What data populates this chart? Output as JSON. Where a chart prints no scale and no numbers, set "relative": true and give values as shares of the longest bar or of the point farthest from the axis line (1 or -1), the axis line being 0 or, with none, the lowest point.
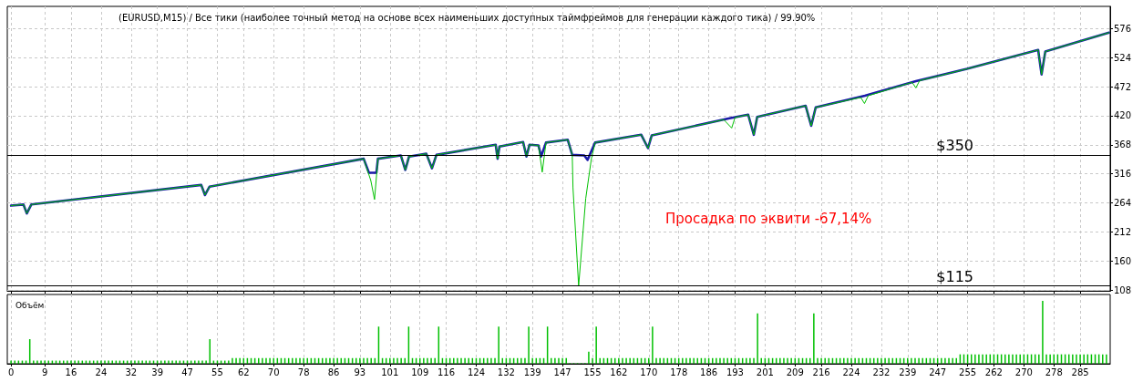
{
  "chart_data": [
    {
      "type": "line",
      "title": "(EURUSD,M15) / Все тики (наиболее точный метод на основе всех наименьших доступных таймфреймов для генерации каждого тика) / 99.90%",
      "annotations": [
        "Просадка по эквити -67,14%"
      ],
      "series": [
        {
          "color": "#00c000",
          "x": [
            0,
            3.3,
            4.2,
            5.4,
            50.7,
            51.7,
            52.9,
            94,
            95.9,
            96.9,
            97.8,
            103.9,
            105.1,
            106.1,
            110.7,
            112.2,
            113.4,
            129.2,
            129.7,
            130.2,
            136.5,
            137.4,
            138.2,
            140.6,
            141.6,
            142.6,
            148.4,
            149.6,
            149.8,
            151.3,
            153.2,
            154.7,
            155.7,
            168,
            169.8,
            170.8,
            190,
            192.1,
            193,
            196.5,
            198,
            198.9,
            211.8,
            213.3,
            214.5,
            226.5,
            227.5,
            228.5,
            240.2,
            241.2,
            242.2,
            254.8,
            273.8,
            274.7,
            275.7,
            292.7
          ],
          "values": [
            259,
            261,
            245,
            261,
            296,
            278,
            293,
            343,
            304,
            270,
            343,
            349,
            323,
            347,
            352,
            326,
            350,
            368,
            343,
            365,
            373,
            347,
            368,
            367,
            319,
            372,
            377,
            350,
            291,
            115,
            272,
            343,
            372,
            386,
            362,
            385,
            413,
            398,
            417,
            422,
            386,
            418,
            438,
            402,
            435,
            453,
            442,
            456,
            480,
            470,
            483,
            504,
            538,
            494,
            535,
            569
          ]
        },
        {
          "color": "#1a1aa8",
          "x": [
            0,
            3.3,
            4.2,
            5.4,
            50.7,
            51.7,
            52.9,
            94,
            95.4,
            97.4,
            97.8,
            103.9,
            105.1,
            106.1,
            110.7,
            112.2,
            113.4,
            129.2,
            129.7,
            130.2,
            136.5,
            137.4,
            138.2,
            140.6,
            141.3,
            142.6,
            148.4,
            149.6,
            152.8,
            153.7,
            155.7,
            168,
            169.8,
            170.8,
            191.2,
            196.5,
            198,
            198.9,
            211.8,
            213.3,
            214.5,
            227.6,
            241.2,
            254.8,
            273.8,
            274.7,
            275.7,
            292.7
          ],
          "values": [
            259,
            261,
            245,
            261,
            296,
            278,
            293,
            343,
            318,
            318,
            343,
            349,
            323,
            347,
            352,
            326,
            350,
            368,
            343,
            365,
            373,
            347,
            368,
            367,
            347,
            372,
            377,
            350,
            349,
            341,
            372,
            386,
            362,
            385,
            415,
            422,
            386,
            418,
            438,
            402,
            435,
            456,
            482,
            504,
            538,
            494,
            535,
            569
          ]
        }
      ],
      "xlim": [
        -1,
        293
      ],
      "xticks": [
        0,
        9,
        16,
        24,
        32,
        39,
        47,
        55,
        62,
        70,
        78,
        86,
        93,
        101,
        109,
        116,
        124,
        132,
        139,
        147,
        155,
        162,
        170,
        178,
        186,
        193,
        201,
        209,
        216,
        224,
        232,
        239,
        247,
        255,
        262,
        270,
        278,
        285
      ],
      "ylim": [
        106,
        616
      ],
      "yticks": [
        108,
        160,
        212,
        264,
        316,
        368,
        420,
        472,
        524,
        576
      ],
      "ref_lines": [
        {
          "axis": "y",
          "value": 350,
          "label": "$350",
          "color": "#000000"
        },
        {
          "axis": "y",
          "value": 115,
          "label": "$115",
          "color": "#000000"
        }
      ],
      "grid": true,
      "marker": "none",
      "line_style": "solid",
      "tick_labels": "y"
    },
    {
      "type": "bar",
      "title": "Объём",
      "relative": true,
      "color": "#00c000",
      "grid": "x",
      "tick_labels": "x",
      "xlim": [
        -1,
        293
      ],
      "xticks": [
        0,
        9,
        16,
        24,
        32,
        39,
        47,
        55,
        62,
        70,
        78,
        86,
        93,
        101,
        109,
        116,
        124,
        132,
        139,
        147,
        155,
        162,
        170,
        178,
        186,
        193,
        201,
        209,
        216,
        224,
        232,
        239,
        247,
        255,
        262,
        270,
        278,
        285
      ],
      "x": [
        0,
        1,
        2,
        3,
        4,
        5,
        6,
        7,
        8,
        9,
        10,
        11,
        12,
        13,
        14,
        15,
        16,
        17,
        18,
        19,
        20,
        21,
        22,
        23,
        24,
        25,
        26,
        27,
        28,
        29,
        30,
        31,
        32,
        33,
        34,
        35,
        36,
        37,
        38,
        39,
        40,
        41,
        42,
        43,
        44,
        45,
        46,
        47,
        48,
        49,
        50,
        51,
        52,
        53,
        54,
        55,
        56,
        57,
        58,
        59,
        60,
        61,
        62,
        63,
        64,
        65,
        66,
        67,
        68,
        69,
        70,
        71,
        72,
        73,
        74,
        75,
        76,
        77,
        78,
        79,
        80,
        81,
        82,
        83,
        84,
        85,
        86,
        87,
        88,
        89,
        90,
        91,
        92,
        93,
        94,
        95,
        96,
        97,
        98,
        99,
        100,
        101,
        102,
        103,
        104,
        105,
        106,
        107,
        108,
        109,
        110,
        111,
        112,
        113,
        114,
        115,
        116,
        117,
        118,
        119,
        120,
        121,
        122,
        123,
        124,
        125,
        126,
        127,
        128,
        129,
        130,
        131,
        132,
        133,
        134,
        135,
        136,
        137,
        138,
        139,
        140,
        141,
        142,
        143,
        144,
        145,
        146,
        147,
        148,
        149,
        150,
        151,
        152,
        153,
        154,
        155,
        156,
        157,
        158,
        159,
        160,
        161,
        162,
        163,
        164,
        165,
        166,
        167,
        168,
        169,
        170,
        171,
        172,
        173,
        174,
        175,
        176,
        177,
        178,
        179,
        180,
        181,
        182,
        183,
        184,
        185,
        186,
        187,
        188,
        189,
        190,
        191,
        192,
        193,
        194,
        195,
        196,
        197,
        198,
        199,
        200,
        201,
        202,
        203,
        204,
        205,
        206,
        207,
        208,
        209,
        210,
        211,
        212,
        213,
        214,
        215,
        216,
        217,
        218,
        219,
        220,
        221,
        222,
        223,
        224,
        225,
        226,
        227,
        228,
        229,
        230,
        231,
        232,
        233,
        234,
        235,
        236,
        237,
        238,
        239,
        240,
        241,
        242,
        243,
        244,
        245,
        246,
        247,
        248,
        249,
        250,
        251,
        252,
        253,
        254,
        255,
        256,
        257,
        258,
        259,
        260,
        261,
        262,
        263,
        264,
        265,
        266,
        267,
        268,
        269,
        270,
        271,
        272,
        273,
        274,
        275,
        276,
        277,
        278,
        279,
        280,
        281,
        282,
        283,
        284,
        285,
        286,
        287,
        288,
        289,
        290,
        291,
        292
      ],
      "values": [
        0.05,
        0.05,
        0.05,
        0.05,
        0.05,
        0.39,
        0.05,
        0.05,
        0.05,
        0.05,
        0.05,
        0.05,
        0.05,
        0.05,
        0.05,
        0.05,
        0.05,
        0.05,
        0.05,
        0.05,
        0.05,
        0.05,
        0.05,
        0.05,
        0.05,
        0.05,
        0.05,
        0.05,
        0.05,
        0.05,
        0.05,
        0.05,
        0.05,
        0.05,
        0.05,
        0.05,
        0.05,
        0.05,
        0.05,
        0.05,
        0.05,
        0.05,
        0.05,
        0.05,
        0.05,
        0.05,
        0.05,
        0.05,
        0.05,
        0.05,
        0.05,
        0.05,
        0.05,
        0.39,
        0.05,
        0.05,
        0.05,
        0.05,
        0.05,
        0.09,
        0.09,
        0.09,
        0.09,
        0.09,
        0.09,
        0.09,
        0.09,
        0.09,
        0.09,
        0.09,
        0.09,
        0.09,
        0.09,
        0.09,
        0.09,
        0.09,
        0.09,
        0.09,
        0.09,
        0.09,
        0.09,
        0.09,
        0.09,
        0.09,
        0.09,
        0.09,
        0.09,
        0.09,
        0.09,
        0.09,
        0.09,
        0.09,
        0.09,
        0.09,
        0.09,
        0.09,
        0.09,
        0.09,
        0.59,
        0.09,
        0.09,
        0.09,
        0.09,
        0.09,
        0.09,
        0.09,
        0.59,
        0.09,
        0.09,
        0.09,
        0.09,
        0.09,
        0.09,
        0.09,
        0.59,
        0.09,
        0.09,
        0.09,
        0.09,
        0.09,
        0.09,
        0.09,
        0.09,
        0.09,
        0.09,
        0.09,
        0.09,
        0.09,
        0.09,
        0.09,
        0.59,
        0.09,
        0.09,
        0.09,
        0.09,
        0.09,
        0.09,
        0.09,
        0.59,
        0.09,
        0.09,
        0.09,
        0.09,
        0.59,
        0.09,
        0.09,
        0.09,
        0.09,
        0.09,
        0.01,
        0.01,
        0.01,
        0.01,
        0.01,
        0.19,
        0.09,
        0.59,
        0.09,
        0.09,
        0.09,
        0.09,
        0.09,
        0.09,
        0.09,
        0.09,
        0.09,
        0.09,
        0.09,
        0.09,
        0.09,
        0.09,
        0.59,
        0.09,
        0.09,
        0.09,
        0.09,
        0.09,
        0.09,
        0.09,
        0.09,
        0.09,
        0.09,
        0.09,
        0.09,
        0.09,
        0.09,
        0.09,
        0.09,
        0.09,
        0.09,
        0.09,
        0.09,
        0.09,
        0.09,
        0.09,
        0.09,
        0.09,
        0.09,
        0.09,
        0.8,
        0.09,
        0.09,
        0.09,
        0.09,
        0.09,
        0.09,
        0.09,
        0.09,
        0.09,
        0.09,
        0.09,
        0.09,
        0.09,
        0.09,
        0.8,
        0.09,
        0.09,
        0.09,
        0.09,
        0.09,
        0.09,
        0.09,
        0.09,
        0.09,
        0.09,
        0.09,
        0.09,
        0.09,
        0.09,
        0.09,
        0.09,
        0.09,
        0.09,
        0.09,
        0.09,
        0.09,
        0.09,
        0.09,
        0.09,
        0.09,
        0.09,
        0.09,
        0.09,
        0.09,
        0.09,
        0.09,
        0.09,
        0.09,
        0.09,
        0.09,
        0.09,
        0.09,
        0.09,
        0.15,
        0.15,
        0.15,
        0.15,
        0.15,
        0.15,
        0.15,
        0.15,
        0.15,
        0.15,
        0.15,
        0.15,
        0.15,
        0.15,
        0.15,
        0.15,
        0.15,
        0.15,
        0.15,
        0.15,
        0.15,
        0.15,
        1,
        0.15,
        0.15,
        0.15,
        0.15,
        0.15,
        0.15,
        0.15,
        0.15,
        0.15,
        0.15,
        0.15,
        0.15,
        0.15,
        0.15,
        0.15,
        0.15,
        0.15
      ]
    }
  ]
}
